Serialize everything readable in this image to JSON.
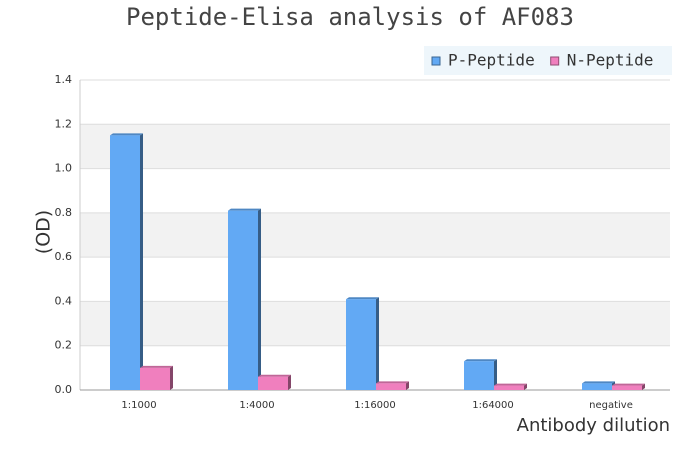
{
  "chart_data": {
    "type": "bar",
    "title": "Peptide-Elisa analysis of AF083",
    "x_label": "Antibody dilution",
    "y_label": "(OD)",
    "categories": [
      "1:1000",
      "1:4000",
      "1:16000",
      "1:64000",
      "negative"
    ],
    "series": [
      {
        "name": "P-Peptide",
        "color": "#62a9f4",
        "values": [
          1.15,
          0.81,
          0.41,
          0.13,
          0.03
        ]
      },
      {
        "name": "N-Peptide",
        "color": "#f07fbe",
        "values": [
          0.1,
          0.06,
          0.03,
          0.02,
          0.02
        ]
      }
    ],
    "ylim": [
      0,
      1.4
    ],
    "yticks": [
      {
        "value": 0,
        "label": "0.0"
      },
      0.2,
      0.4,
      0.6,
      0.8,
      {
        "value": 1,
        "label": "1.0"
      },
      1.2,
      1.4
    ],
    "grid": true,
    "legend": "top-right"
  }
}
